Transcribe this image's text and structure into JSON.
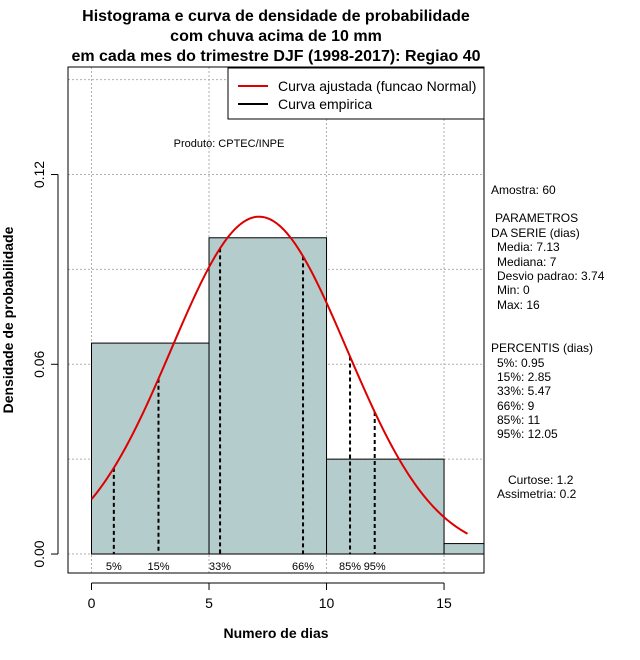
{
  "chart_data": {
    "type": "bar",
    "title_lines": [
      "Histograma e curva de densidade de probabilidade",
      "com chuva acima de 10 mm",
      "em cada mes do trimestre DJF (1998-2017): Regiao 40"
    ],
    "xlabel": "Numero de dias",
    "ylabel": "Densidade de probabilidade",
    "xlim": [
      -1,
      16.7
    ],
    "ylim": [
      -0.006,
      0.154
    ],
    "x_ticks": [
      0,
      5,
      10,
      15
    ],
    "y_ticks": [
      0.0,
      0.06,
      0.12
    ],
    "y_tick_labels": [
      "0.00",
      "0.06",
      "0.12"
    ],
    "grid": true,
    "bars": [
      {
        "x0": 0,
        "x1": 5,
        "density": 0.0667
      },
      {
        "x0": 5,
        "x1": 10,
        "density": 0.1
      },
      {
        "x0": 10,
        "x1": 15,
        "density": 0.03
      },
      {
        "x0": 15,
        "x1": 16.7,
        "density": 0.0033
      }
    ],
    "normal_curve": {
      "mean": 7.13,
      "sd": 3.74,
      "x_from": 0,
      "x_to": 16
    },
    "percentiles": [
      {
        "label": "5%",
        "value": 0.95
      },
      {
        "label": "15%",
        "value": 2.85
      },
      {
        "label": "33%",
        "value": 5.47
      },
      {
        "label": "66%",
        "value": 9
      },
      {
        "label": "85%",
        "value": 11
      },
      {
        "label": "95%",
        "value": 12.05
      }
    ],
    "legend": [
      {
        "label": "Curva ajustada (funcao Normal)",
        "color": "#dd0000"
      },
      {
        "label": "Curva empirica",
        "color": "#000000"
      }
    ],
    "product_label": "Produto: CPTEC/INPE",
    "colors": {
      "bar_fill": "#b5cccc",
      "curve": "#dd0000",
      "grid": "#b0b0b0"
    }
  },
  "stats": {
    "amostra": "Amostra: 60",
    "param_header": "PARAMETROS",
    "param_sub": "DA SERIE (dias)",
    "media": "Media: 7.13",
    "mediana": "Mediana: 7",
    "desvio": "Desvio padrao: 3.74",
    "min": "Min: 0",
    "max": "Max: 16",
    "perc_header": "PERCENTIS (dias)",
    "p5": "5%: 0.95",
    "p15": "15%: 2.85",
    "p33": "33%: 5.47",
    "p66": "66%: 9",
    "p85": "85%: 11",
    "p95": "95%: 12.05",
    "curtose": "Curtose: 1.2",
    "assimetria": "Assimetria: 0.2"
  }
}
